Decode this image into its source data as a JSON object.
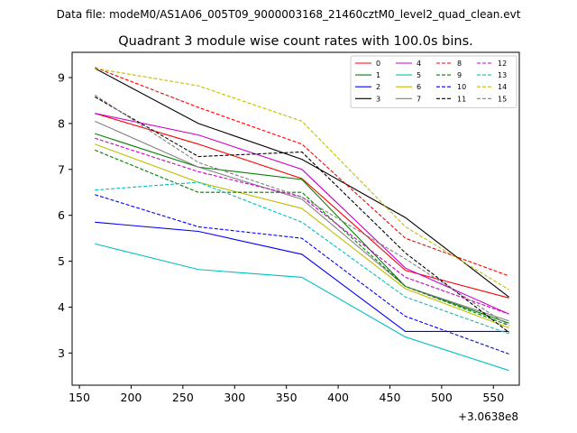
{
  "chart_data": {
    "type": "line",
    "suptitle": "Data file: modeM0/AS1A06_005T09_9000003168_21460cztM0_level2_quad_clean.evt",
    "title": "Quadrant 3 module wise count rates with 100.0s bins.",
    "xlabel": "",
    "ylabel": "",
    "x_offset_label": "+3.0638e8",
    "xlim": [
      143,
      575
    ],
    "ylim": [
      2.3,
      9.55
    ],
    "xticks": [
      150,
      200,
      250,
      300,
      350,
      400,
      450,
      500,
      550
    ],
    "yticks": [
      3,
      4,
      5,
      6,
      7,
      8,
      9
    ],
    "x": [
      165,
      265,
      365,
      465,
      565
    ],
    "legend_loc": "upper right",
    "legend_ncol": 4,
    "series": [
      {
        "name": "0",
        "color": "#ff0000",
        "dash": "solid",
        "values": [
          8.22,
          7.55,
          6.8,
          4.8,
          4.2
        ]
      },
      {
        "name": "1",
        "color": "#008000",
        "dash": "solid",
        "values": [
          7.78,
          7.05,
          6.78,
          4.45,
          3.65
        ]
      },
      {
        "name": "2",
        "color": "#0000ff",
        "dash": "solid",
        "values": [
          5.85,
          5.65,
          5.15,
          3.47,
          3.47
        ]
      },
      {
        "name": "3",
        "color": "#000000",
        "dash": "solid",
        "values": [
          9.2,
          8.0,
          7.22,
          5.95,
          4.22
        ]
      },
      {
        "name": "4",
        "color": "#cc00cc",
        "dash": "solid",
        "values": [
          8.22,
          7.75,
          7.0,
          4.85,
          3.85
        ]
      },
      {
        "name": "5",
        "color": "#00bfbf",
        "dash": "solid",
        "values": [
          5.38,
          4.82,
          4.65,
          3.35,
          2.62
        ]
      },
      {
        "name": "6",
        "color": "#bfbf00",
        "dash": "solid",
        "values": [
          7.55,
          6.72,
          6.15,
          4.4,
          3.55
        ]
      },
      {
        "name": "7",
        "color": "#808080",
        "dash": "solid",
        "values": [
          8.05,
          7.05,
          6.35,
          4.45,
          3.7
        ]
      },
      {
        "name": "8",
        "color": "#ff0000",
        "dash": "dashed",
        "values": [
          9.22,
          8.35,
          7.55,
          5.5,
          4.68
        ]
      },
      {
        "name": "9",
        "color": "#008000",
        "dash": "dashed",
        "values": [
          7.42,
          6.5,
          6.5,
          4.45,
          3.6
        ]
      },
      {
        "name": "10",
        "color": "#0000ff",
        "dash": "dashed",
        "values": [
          6.45,
          5.75,
          5.5,
          3.8,
          2.98
        ]
      },
      {
        "name": "11",
        "color": "#000000",
        "dash": "dashed",
        "values": [
          8.58,
          7.28,
          7.38,
          5.18,
          3.45
        ]
      },
      {
        "name": "12",
        "color": "#cc00cc",
        "dash": "dashed",
        "values": [
          7.68,
          6.95,
          6.4,
          4.65,
          3.85
        ]
      },
      {
        "name": "13",
        "color": "#00bfbf",
        "dash": "dashed",
        "values": [
          6.55,
          6.72,
          5.85,
          4.22,
          3.42
        ]
      },
      {
        "name": "14",
        "color": "#bfbf00",
        "dash": "dashed",
        "values": [
          9.2,
          8.82,
          8.05,
          5.75,
          4.38
        ]
      },
      {
        "name": "15",
        "color": "#808080",
        "dash": "dashed",
        "values": [
          8.62,
          7.15,
          6.4,
          5.05,
          3.6
        ]
      }
    ]
  }
}
